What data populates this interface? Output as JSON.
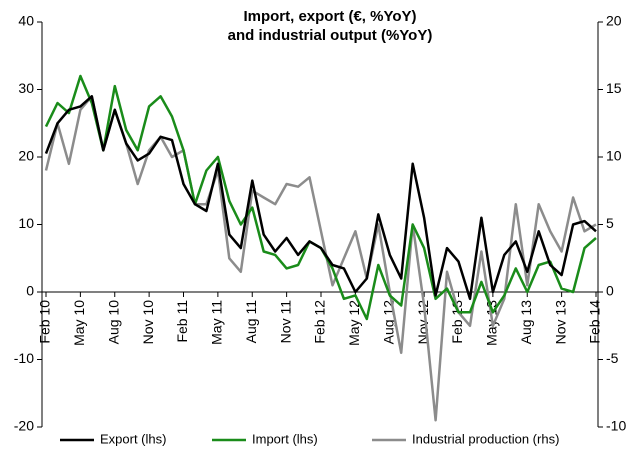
{
  "chart_data": {
    "type": "line",
    "title": "Import, export (€, %YoY)",
    "subtitle": "and industrial output (%YoY)",
    "categories": [
      "Feb 10",
      null,
      null,
      "May 10",
      null,
      null,
      "Aug 10",
      null,
      null,
      "Nov 10",
      null,
      null,
      "Feb 11",
      null,
      null,
      "May 11",
      null,
      null,
      "Aug 11",
      null,
      null,
      "Nov 11",
      null,
      null,
      "Feb 12",
      null,
      null,
      "May 12",
      null,
      null,
      "Aug 12",
      null,
      null,
      "Nov 12",
      null,
      null,
      "Feb 13",
      null,
      null,
      "May 13",
      null,
      null,
      "Aug 13",
      null,
      null,
      "Nov 13",
      null,
      null,
      "Feb 14"
    ],
    "series": [
      {
        "name": "Export (lhs)",
        "color": "#000000",
        "values": [
          20.5,
          25,
          27,
          27.5,
          29,
          21,
          27,
          22,
          19.5,
          20.5,
          23,
          22.5,
          16,
          13,
          12,
          19,
          8.5,
          6.5,
          16.5,
          8.5,
          6,
          8,
          5.5,
          7.5,
          6.5,
          4,
          3.5,
          0,
          2,
          11.5,
          5.5,
          2,
          19,
          11,
          -0.5,
          6.5,
          4.5,
          -1,
          11,
          0,
          5.5,
          7.5,
          3,
          9,
          4,
          2.5,
          10,
          10.5,
          9
        ]
      },
      {
        "name": "Import (lhs)",
        "color": "#1a8c1a",
        "values": [
          24.5,
          28,
          26.5,
          32,
          28,
          21,
          30.5,
          24,
          21,
          27.5,
          29,
          26,
          21,
          13,
          18,
          20,
          13.5,
          10,
          12.5,
          6,
          5.5,
          3.5,
          4,
          7.5,
          6.5,
          3.5,
          -1,
          -0.5,
          -4,
          4,
          -0.5,
          -2,
          10,
          6.5,
          -1,
          0.5,
          -3,
          -3,
          1.5,
          -3,
          -0.5,
          3.5,
          0,
          4,
          4.5,
          0.5,
          0,
          6.5,
          8
        ]
      },
      {
        "name": "Industrial production (rhs)",
        "color": "#8c8c8c",
        "axis": "y2",
        "values": [
          9,
          12.5,
          9.5,
          13.5,
          14.5,
          10.5,
          13.5,
          11,
          8,
          10.5,
          11.5,
          10,
          10.5,
          6.5,
          6.5,
          9,
          2.5,
          1.5,
          7.5,
          7,
          6.5,
          8,
          7.8,
          8.5,
          4.5,
          0.5,
          2.5,
          4.5,
          1,
          5,
          0,
          -4.5,
          5,
          -1,
          -9.5,
          1.5,
          -1.5,
          -2.5,
          3,
          -2.5,
          -0.5,
          6.5,
          0.5,
          6.5,
          4.5,
          3,
          7,
          4.5,
          5
        ]
      }
    ],
    "ylim": [
      -20,
      40
    ],
    "yticks": [
      -20,
      -10,
      0,
      10,
      20,
      30,
      40
    ],
    "y2lim": [
      -10,
      20
    ],
    "y2ticks": [
      -10,
      -5,
      0,
      5,
      10,
      15,
      20
    ],
    "grid": false,
    "legend": "bottom"
  }
}
